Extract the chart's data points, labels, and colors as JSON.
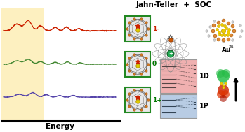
{
  "title": "Jahn-Teller  +  SOC",
  "bg_color": "#ffffff",
  "yellow_bg": "#fdf0c0",
  "energy_label": "Energy",
  "spectra": {
    "colors": [
      "#cc2200",
      "#448833",
      "#5544aa"
    ]
  },
  "charge_labels": [
    "1-",
    "0",
    "1+"
  ],
  "charge_colors": [
    "#cc2200",
    "#006600",
    "#006600"
  ],
  "labels_1D": "1D",
  "labels_1P": "1P",
  "pink_box_color": "#f0b0b0",
  "blue_box_color": "#b8cce4"
}
